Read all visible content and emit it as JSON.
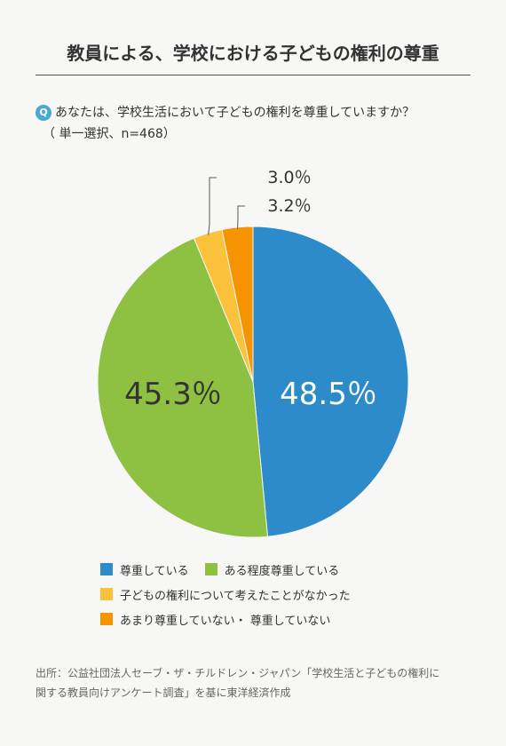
{
  "header": {
    "title": "教員による、学校における子どもの権利の尊重"
  },
  "question": {
    "badge": "Q",
    "text": "あなたは、学校生活において子どもの権利を尊重していますか？",
    "note": "（ 単一選択、n=468）"
  },
  "chart_data": {
    "type": "pie",
    "slices": [
      {
        "label": "尊重している",
        "value": 48.5,
        "display": "48.5％",
        "color": "#2e8bca"
      },
      {
        "label": "ある程度尊重している",
        "value": 45.3,
        "display": "45.3％",
        "color": "#8ec042"
      },
      {
        "label": "子どもの権利について考えたことがなかった",
        "value": 3.0,
        "display": "3.0％",
        "color": "#fbc13b"
      },
      {
        "label": "あまり尊重していない・ 尊重していない",
        "value": 3.2,
        "display": "3.2％",
        "color": "#f59300"
      }
    ]
  },
  "legend": {
    "items": [
      {
        "label": "尊重している",
        "color": "#2e8bca"
      },
      {
        "label": "ある程度尊重している",
        "color": "#8ec042"
      },
      {
        "label": "子どもの権利について考えたことがなかった",
        "color": "#fbc13b"
      },
      {
        "label": "あまり尊重していない・ 尊重していない",
        "color": "#f59300"
      }
    ]
  },
  "footer": {
    "source_line1": "出所：公益社団法人セーブ・ザ・チルドレン・ジャパン「学校生活と子どもの権利に",
    "source_line2": "関する教員向けアンケート調査」を基に東洋経済作成"
  }
}
